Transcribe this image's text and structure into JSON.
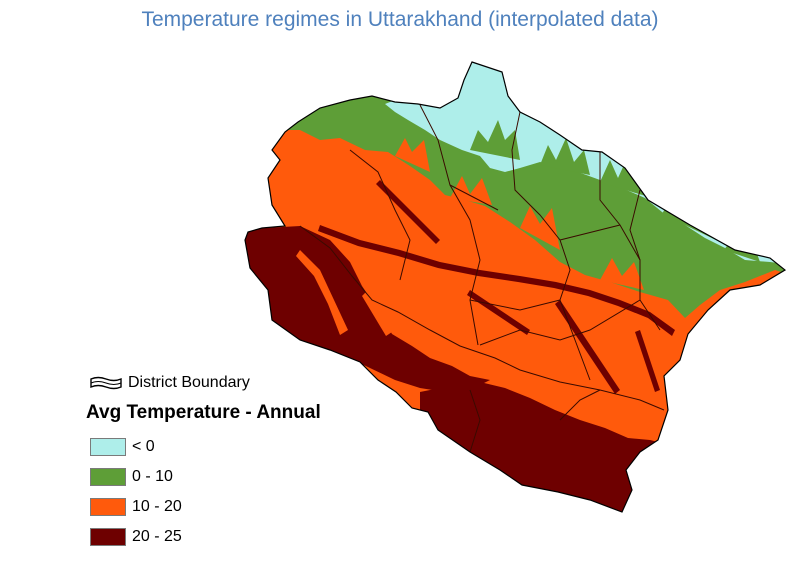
{
  "title": "Temperature regimes in Uttarakhand (interpolated data)",
  "legend": {
    "boundary_label": "District Boundary",
    "title": "Avg Temperature - Annual",
    "classes": [
      {
        "label": "< 0",
        "color": "#aeeeea"
      },
      {
        "label": "0 - 10",
        "color": "#5e9e37"
      },
      {
        "label": "10 - 20",
        "color": "#ff5a0c"
      },
      {
        "label": "20 - 25",
        "color": "#6e0000"
      }
    ]
  },
  "colors": {
    "title": "#4f81bd",
    "outline": "#000000",
    "district_line": "#3a0a00"
  }
}
